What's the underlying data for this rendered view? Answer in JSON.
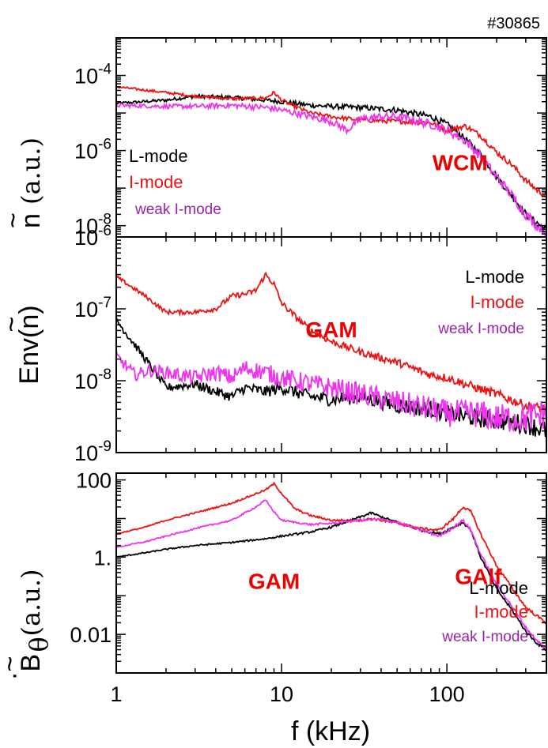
{
  "shot_label": "#30865",
  "colors": {
    "l_mode": "#000000",
    "i_mode": "#ee1111",
    "weak_i_mode": "#ee33ee",
    "annotation": "#ee0000",
    "weak_label": "#9922aa"
  },
  "chart_data": [
    {
      "type": "line",
      "panel": "density-spectrum",
      "ylabel_main": "n",
      "ylabel_tilde": "~",
      "ylabel_unit": "(a.u.)",
      "xscale": "log",
      "yscale": "log",
      "xlim": [
        1,
        400
      ],
      "ylim": [
        5e-09,
        0.001
      ],
      "yticks": [
        {
          "v": 0.0001,
          "m": "10",
          "e": "-4"
        },
        {
          "v": 1e-06,
          "m": "10",
          "e": "-6"
        },
        {
          "v": 1e-08,
          "m": "10",
          "e": "-8"
        }
      ],
      "annotations": [
        {
          "text": "WCM",
          "x": 120,
          "y": 3e-07
        }
      ],
      "legend": {
        "position": "left",
        "entries": [
          {
            "text": "L-mode",
            "series": "L-mode"
          },
          {
            "text": "I-mode",
            "series": "I-mode"
          },
          {
            "text": "weak I-mode",
            "series": "weak I-mode"
          }
        ]
      },
      "series": [
        {
          "name": "L-mode",
          "color_key": "l_mode",
          "noise": 0.1,
          "x": [
            1,
            2,
            3,
            5,
            8,
            10,
            15,
            20,
            30,
            50,
            80,
            100,
            130,
            160,
            200,
            250,
            300,
            350,
            400
          ],
          "y": [
            1.8e-05,
            2.2e-05,
            2.8e-05,
            2.6e-05,
            2.2e-05,
            2e-05,
            1.6e-05,
            1.5e-05,
            1.4e-05,
            1.2e-05,
            8e-06,
            5e-06,
            2e-06,
            8e-07,
            2e-07,
            6e-08,
            2e-08,
            1.2e-08,
            8e-09
          ]
        },
        {
          "name": "I-mode",
          "color_key": "i_mode",
          "noise": 0.08,
          "x": [
            1,
            2,
            3,
            5,
            8,
            9,
            10,
            12,
            15,
            20,
            30,
            50,
            80,
            100,
            130,
            160,
            200,
            250,
            300,
            350,
            400
          ],
          "y": [
            5e-05,
            3.5e-05,
            2.8e-05,
            2.4e-05,
            2.5e-05,
            3.5e-05,
            2.2e-05,
            1.5e-05,
            1e-05,
            8e-06,
            6.5e-06,
            6e-06,
            5.5e-06,
            3.5e-06,
            4.5e-06,
            2.5e-06,
            9e-07,
            4e-07,
            1.6e-07,
            9e-08,
            6e-08
          ]
        },
        {
          "name": "weak I-mode",
          "color_key": "weak_i_mode",
          "noise": 0.14,
          "x": [
            1,
            2,
            3,
            5,
            8,
            10,
            15,
            20,
            25,
            30,
            40,
            50,
            80,
            100,
            130,
            160,
            200,
            250,
            300,
            350,
            400
          ],
          "y": [
            1.6e-05,
            1.5e-05,
            1.5e-05,
            1.6e-05,
            1.4e-05,
            1.2e-05,
            8e-06,
            6e-06,
            3.5e-06,
            7e-06,
            8e-06,
            8e-06,
            5e-06,
            3.5e-06,
            1.8e-06,
            7e-07,
            2e-07,
            6e-08,
            2e-08,
            1e-08,
            7e-09
          ]
        }
      ]
    },
    {
      "type": "line",
      "panel": "envelope-spectrum",
      "ylabel_main": "Env(n)",
      "ylabel_tilde": "~",
      "xscale": "log",
      "yscale": "log",
      "xlim": [
        1,
        400
      ],
      "ylim": [
        1e-09,
        1e-06
      ],
      "yticks": [
        {
          "v": 1e-06,
          "m": "10",
          "e": "-6"
        },
        {
          "v": 1e-07,
          "m": "10",
          "e": "-7"
        },
        {
          "v": 1e-08,
          "m": "10",
          "e": "-8"
        },
        {
          "v": 1e-09,
          "m": "10",
          "e": "-9"
        }
      ],
      "annotations": [
        {
          "text": "GAM",
          "x": 20,
          "y": 4e-08
        }
      ],
      "legend": {
        "position": "right",
        "entries": [
          {
            "text": "L-mode",
            "series": "L-mode"
          },
          {
            "text": "I-mode",
            "series": "I-mode"
          },
          {
            "text": "weak I-mode",
            "series": "weak I-mode"
          }
        ]
      },
      "series": [
        {
          "name": "L-mode",
          "color_key": "l_mode",
          "noise": 0.14,
          "x": [
            1,
            1.5,
            2,
            3,
            4,
            5,
            6,
            8,
            10,
            12,
            15,
            20,
            30,
            50,
            80,
            100,
            150,
            200,
            300,
            400
          ],
          "y": [
            7e-08,
            2e-08,
            8e-09,
            9e-09,
            7e-09,
            6e-09,
            8e-09,
            7e-09,
            8e-09,
            7e-09,
            6e-09,
            5.5e-09,
            6e-09,
            4.5e-09,
            4e-09,
            3.5e-09,
            3e-09,
            2.8e-09,
            2.5e-09,
            2e-09
          ]
        },
        {
          "name": "I-mode",
          "color_key": "i_mode",
          "noise": 0.07,
          "x": [
            1,
            1.5,
            2,
            3,
            4,
            5,
            6,
            7,
            8,
            9,
            10,
            12,
            15,
            20,
            30,
            50,
            80,
            100,
            150,
            200,
            300,
            400
          ],
          "y": [
            2.8e-07,
            1.5e-07,
            9e-08,
            9e-08,
            1e-07,
            1.5e-07,
            1.6e-07,
            1.8e-07,
            3e-07,
            2.2e-07,
            1.2e-07,
            8e-08,
            5e-08,
            3.5e-08,
            2.5e-08,
            1.8e-08,
            1.2e-08,
            1.1e-08,
            8e-09,
            6.5e-09,
            4.5e-09,
            4e-09
          ]
        },
        {
          "name": "weak I-mode",
          "color_key": "weak_i_mode",
          "noise": 0.22,
          "x": [
            1,
            1.3,
            1.6,
            2,
            3,
            4,
            5,
            6,
            8,
            10,
            15,
            20,
            30,
            50,
            80,
            100,
            150,
            200,
            300,
            400
          ],
          "y": [
            2.2e-08,
            1.2e-08,
            1.4e-08,
            1.3e-08,
            1.1e-08,
            1.3e-08,
            1.1e-08,
            1.5e-08,
            1.3e-08,
            1.1e-08,
            9e-09,
            8e-09,
            6.5e-09,
            5e-09,
            4e-09,
            3.5e-09,
            3.5e-09,
            3e-09,
            3e-09,
            3.5e-09
          ]
        }
      ]
    },
    {
      "type": "line",
      "panel": "magnetic-spectrum",
      "ylabel_main": "B",
      "ylabel_sub": "θ",
      "ylabel_tilde": "~",
      "ylabel_dot": "·",
      "ylabel_unit": "(a.u.)",
      "xscale": "log",
      "yscale": "log",
      "xlim": [
        1,
        400
      ],
      "ylim": [
        0.001,
        150
      ],
      "yticks": [
        {
          "v": 100,
          "t": "100"
        },
        {
          "v": 1,
          "t": "1."
        },
        {
          "v": 0.01,
          "t": "0.01"
        }
      ],
      "xticks": [
        {
          "v": 1,
          "t": "1"
        },
        {
          "v": 10,
          "t": "10"
        },
        {
          "v": 100,
          "t": "100"
        }
      ],
      "xlabel": "f (kHz)",
      "annotations": [
        {
          "text": "GAM",
          "x": 9,
          "y": 0.15
        },
        {
          "text": "GAlf",
          "x": 155,
          "y": 0.2
        }
      ],
      "legend": {
        "position": "bottom-right",
        "entries": [
          {
            "text": "L-mode",
            "series": "L-mode"
          },
          {
            "text": "I-mode",
            "series": "I-mode"
          },
          {
            "text": "weak I-mode",
            "series": "weak I-mode"
          }
        ]
      },
      "series": [
        {
          "name": "L-mode",
          "color_key": "l_mode",
          "noise": 0.04,
          "x": [
            1,
            1.5,
            2,
            3,
            5,
            8,
            10,
            15,
            20,
            30,
            35,
            40,
            50,
            70,
            90,
            110,
            125,
            140,
            160,
            200,
            250,
            300,
            350,
            400
          ],
          "y": [
            1.0,
            1.3,
            1.6,
            2.0,
            2.4,
            3.0,
            3.5,
            4.5,
            6.0,
            11,
            14,
            11,
            8.0,
            5.0,
            4.0,
            6.0,
            8.0,
            5.0,
            1.0,
            0.15,
            0.04,
            0.012,
            0.006,
            0.004
          ]
        },
        {
          "name": "I-mode",
          "color_key": "i_mode",
          "noise": 0.04,
          "x": [
            1,
            1.5,
            2,
            3,
            5,
            8,
            9,
            10,
            12,
            15,
            20,
            30,
            35,
            40,
            50,
            70,
            90,
            110,
            125,
            140,
            160,
            200,
            250,
            300,
            350,
            400
          ],
          "y": [
            4.0,
            6.0,
            9.0,
            14,
            25,
            55,
            80,
            45,
            18,
            12,
            9.0,
            9.0,
            10,
            9.0,
            7.5,
            5.5,
            5.0,
            10,
            20,
            15,
            4.0,
            0.6,
            0.15,
            0.05,
            0.03,
            0.02
          ]
        },
        {
          "name": "weak I-mode",
          "color_key": "weak_i_mode",
          "noise": 0.04,
          "x": [
            1,
            1.5,
            2,
            3,
            5,
            7,
            8,
            9,
            10,
            12,
            15,
            20,
            30,
            40,
            50,
            70,
            90,
            110,
            125,
            140,
            160,
            200,
            250,
            300,
            350,
            400
          ],
          "y": [
            1.8,
            2.5,
            3.5,
            5.5,
            9.0,
            20,
            30,
            15,
            9.0,
            8.0,
            7.0,
            7.5,
            9.0,
            9.5,
            8.0,
            5.0,
            3.5,
            6.0,
            9.0,
            5.0,
            1.2,
            0.2,
            0.05,
            0.015,
            0.007,
            0.004
          ]
        }
      ]
    }
  ]
}
